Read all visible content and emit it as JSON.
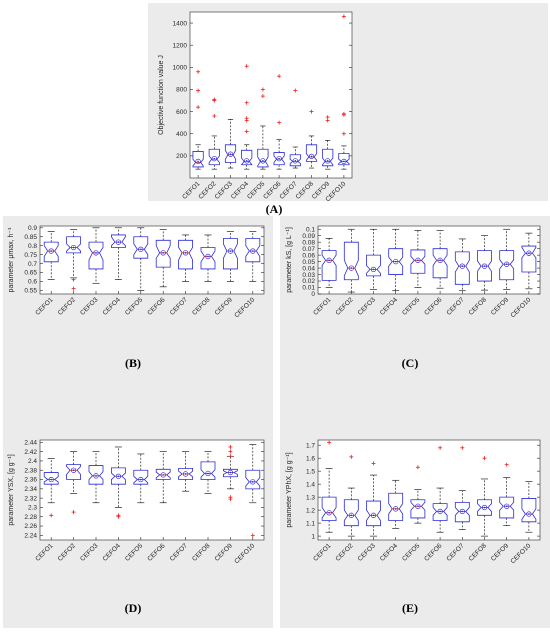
{
  "chart_data": [
    {
      "id": "A",
      "panel_label": "(A)",
      "type": "box",
      "ylabel": "Objective function value  J",
      "categories": [
        "CEFO1",
        "CEFO2",
        "CEFO3",
        "CEFO4",
        "CEFO5",
        "CEFO6",
        "CEFO7",
        "CEFO8",
        "CEFO9",
        "CEFO10"
      ],
      "ylim": [
        0,
        1500
      ],
      "yticks": [
        200,
        400,
        600,
        800,
        1000,
        1200,
        1400
      ],
      "boxes": [
        {
          "min": 80,
          "q1": 100,
          "med": 140,
          "q3": 240,
          "max": 300,
          "mean": 150,
          "notch": [
            110,
            170
          ],
          "outliers": [
            640,
            790,
            960
          ]
        },
        {
          "min": 80,
          "q1": 120,
          "med": 170,
          "q3": 260,
          "max": 380,
          "mean": 175,
          "notch": [
            140,
            200
          ],
          "outliers": [
            560,
            700,
            710
          ]
        },
        {
          "min": 90,
          "q1": 140,
          "med": 210,
          "q3": 300,
          "max": 530,
          "mean": 215,
          "notch": [
            170,
            250
          ],
          "outliers": []
        },
        {
          "min": 80,
          "q1": 120,
          "med": 150,
          "q3": 250,
          "max": 300,
          "mean": 155,
          "notch": [
            120,
            180
          ],
          "outliers": [
            420,
            520,
            540,
            680,
            1010
          ]
        },
        {
          "min": 80,
          "q1": 100,
          "med": 150,
          "q3": 260,
          "max": 470,
          "mean": 155,
          "notch": [
            110,
            190
          ],
          "outliers": [
            740,
            800
          ]
        },
        {
          "min": 80,
          "q1": 120,
          "med": 170,
          "q3": 230,
          "max": 350,
          "mean": 175,
          "notch": [
            140,
            200
          ],
          "outliers": [
            500,
            920
          ]
        },
        {
          "min": 90,
          "q1": 110,
          "med": 150,
          "q3": 210,
          "max": 280,
          "mean": 155,
          "notch": [
            130,
            170
          ],
          "outliers": [
            790
          ]
        },
        {
          "min": 90,
          "q1": 150,
          "med": 190,
          "q3": 300,
          "max": 380,
          "mean": 195,
          "notch": [
            160,
            220
          ],
          "outliers": [
            600
          ]
        },
        {
          "min": 80,
          "q1": 110,
          "med": 150,
          "q3": 260,
          "max": 340,
          "mean": 155,
          "notch": [
            120,
            180
          ],
          "outliers": [
            520,
            550
          ]
        },
        {
          "min": 80,
          "q1": 120,
          "med": 150,
          "q3": 220,
          "max": 290,
          "mean": 150,
          "notch": [
            130,
            170
          ],
          "outliers": [
            400,
            570,
            580,
            1460
          ]
        }
      ]
    },
    {
      "id": "B",
      "panel_label": "(B)",
      "type": "box",
      "ylabel": "parameter  μmax, h⁻¹",
      "categories": [
        "CEFO1",
        "CEFO2",
        "CEFO3",
        "CEFO4",
        "CEFO5",
        "CEFO6",
        "CEFO7",
        "CEFO8",
        "CEFO9",
        "CEFO10"
      ],
      "ylim": [
        0.53,
        0.91
      ],
      "yticks": [
        0.55,
        0.6,
        0.65,
        0.7,
        0.75,
        0.8,
        0.85,
        0.9
      ],
      "boxes": [
        {
          "min": 0.61,
          "q1": 0.71,
          "med": 0.77,
          "q3": 0.82,
          "max": 0.88,
          "mean": 0.77,
          "notch": [
            0.74,
            0.8
          ],
          "outliers": []
        },
        {
          "min": 0.62,
          "q1": 0.76,
          "med": 0.79,
          "q3": 0.85,
          "max": 0.89,
          "mean": 0.79,
          "notch": [
            0.77,
            0.81
          ],
          "outliers": [
            0.56,
            0.61
          ]
        },
        {
          "min": 0.59,
          "q1": 0.67,
          "med": 0.76,
          "q3": 0.82,
          "max": 0.9,
          "mean": 0.76,
          "notch": [
            0.72,
            0.79
          ],
          "outliers": []
        },
        {
          "min": 0.61,
          "q1": 0.79,
          "med": 0.82,
          "q3": 0.86,
          "max": 0.9,
          "mean": 0.82,
          "notch": [
            0.8,
            0.85
          ],
          "outliers": []
        },
        {
          "min": 0.55,
          "q1": 0.73,
          "med": 0.78,
          "q3": 0.85,
          "max": 0.9,
          "mean": 0.78,
          "notch": [
            0.75,
            0.81
          ],
          "outliers": []
        },
        {
          "min": 0.57,
          "q1": 0.68,
          "med": 0.76,
          "q3": 0.83,
          "max": 0.89,
          "mean": 0.76,
          "notch": [
            0.73,
            0.8
          ],
          "outliers": []
        },
        {
          "min": 0.6,
          "q1": 0.67,
          "med": 0.76,
          "q3": 0.83,
          "max": 0.86,
          "mean": 0.76,
          "notch": [
            0.72,
            0.79
          ],
          "outliers": []
        },
        {
          "min": 0.6,
          "q1": 0.67,
          "med": 0.74,
          "q3": 0.79,
          "max": 0.86,
          "mean": 0.74,
          "notch": [
            0.71,
            0.77
          ],
          "outliers": []
        },
        {
          "min": 0.6,
          "q1": 0.67,
          "med": 0.77,
          "q3": 0.84,
          "max": 0.88,
          "mean": 0.77,
          "notch": [
            0.73,
            0.81
          ],
          "outliers": []
        },
        {
          "min": 0.6,
          "q1": 0.71,
          "med": 0.77,
          "q3": 0.84,
          "max": 0.88,
          "mean": 0.77,
          "notch": [
            0.74,
            0.8
          ],
          "outliers": []
        }
      ]
    },
    {
      "id": "C",
      "panel_label": "(C)",
      "type": "box",
      "ylabel": "parameter  kS, [g L⁻¹]",
      "categories": [
        "CEFO1",
        "CEFO2",
        "CEFO3",
        "CEFO4",
        "CEFO5",
        "CEFO6",
        "CEFO7",
        "CEFO8",
        "CEFO9",
        "CEFO10"
      ],
      "ylim": [
        0,
        0.105
      ],
      "yticks": [
        0,
        0.01,
        0.02,
        0.03,
        0.04,
        0.05,
        0.06,
        0.07,
        0.08,
        0.09,
        0.1
      ],
      "boxes": [
        {
          "min": 0.01,
          "q1": 0.021,
          "med": 0.052,
          "q3": 0.067,
          "max": 0.086,
          "mean": 0.052,
          "notch": [
            0.044,
            0.06
          ],
          "outliers": []
        },
        {
          "min": 0.003,
          "q1": 0.022,
          "med": 0.04,
          "q3": 0.08,
          "max": 0.1,
          "mean": 0.04,
          "notch": [
            0.028,
            0.052
          ],
          "outliers": []
        },
        {
          "min": 0.007,
          "q1": 0.028,
          "med": 0.038,
          "q3": 0.06,
          "max": 0.1,
          "mean": 0.038,
          "notch": [
            0.032,
            0.044
          ],
          "outliers": []
        },
        {
          "min": 0.005,
          "q1": 0.03,
          "med": 0.05,
          "q3": 0.07,
          "max": 0.1,
          "mean": 0.05,
          "notch": [
            0.043,
            0.057
          ],
          "outliers": []
        },
        {
          "min": 0.01,
          "q1": 0.032,
          "med": 0.052,
          "q3": 0.068,
          "max": 0.098,
          "mean": 0.052,
          "notch": [
            0.046,
            0.058
          ],
          "outliers": []
        },
        {
          "min": 0.009,
          "q1": 0.025,
          "med": 0.052,
          "q3": 0.07,
          "max": 0.098,
          "mean": 0.052,
          "notch": [
            0.044,
            0.06
          ],
          "outliers": []
        },
        {
          "min": 0.005,
          "q1": 0.015,
          "med": 0.043,
          "q3": 0.065,
          "max": 0.085,
          "mean": 0.043,
          "notch": [
            0.034,
            0.052
          ],
          "outliers": []
        },
        {
          "min": 0.006,
          "q1": 0.02,
          "med": 0.043,
          "q3": 0.067,
          "max": 0.09,
          "mean": 0.043,
          "notch": [
            0.035,
            0.051
          ],
          "outliers": []
        },
        {
          "min": 0.007,
          "q1": 0.022,
          "med": 0.046,
          "q3": 0.067,
          "max": 0.1,
          "mean": 0.046,
          "notch": [
            0.039,
            0.053
          ],
          "outliers": []
        },
        {
          "min": 0.008,
          "q1": 0.034,
          "med": 0.063,
          "q3": 0.074,
          "max": 0.094,
          "mean": 0.063,
          "notch": [
            0.056,
            0.072
          ],
          "outliers": []
        }
      ]
    },
    {
      "id": "D",
      "panel_label": "(D)",
      "type": "box",
      "ylabel": "parameter  YSX, [g g⁻¹]",
      "categories": [
        "CEFO1",
        "CEFO2",
        "CEFO3",
        "CEFO4",
        "CEFO5",
        "CEFO6",
        "CEFO7",
        "CEFO8",
        "CEFO9",
        "CEFO10"
      ],
      "ylim": [
        2.23,
        2.445
      ],
      "yticks": [
        2.24,
        2.26,
        2.28,
        2.3,
        2.32,
        2.34,
        2.36,
        2.38,
        2.4,
        2.42,
        2.44
      ],
      "boxes": [
        {
          "min": 2.31,
          "q1": 2.35,
          "med": 2.36,
          "q3": 2.375,
          "max": 2.405,
          "mean": 2.36,
          "notch": [
            2.355,
            2.366
          ],
          "outliers": [
            2.283
          ]
        },
        {
          "min": 2.33,
          "q1": 2.36,
          "med": 2.38,
          "q3": 2.392,
          "max": 2.42,
          "mean": 2.38,
          "notch": [
            2.371,
            2.388
          ],
          "outliers": [
            2.29
          ]
        },
        {
          "min": 2.31,
          "q1": 2.35,
          "med": 2.368,
          "q3": 2.39,
          "max": 2.42,
          "mean": 2.368,
          "notch": [
            2.36,
            2.377
          ],
          "outliers": []
        },
        {
          "min": 2.3,
          "q1": 2.35,
          "med": 2.367,
          "q3": 2.385,
          "max": 2.43,
          "mean": 2.367,
          "notch": [
            2.36,
            2.374
          ],
          "outliers": [
            2.28,
            2.283
          ]
        },
        {
          "min": 2.31,
          "q1": 2.35,
          "med": 2.36,
          "q3": 2.38,
          "max": 2.415,
          "mean": 2.36,
          "notch": [
            2.353,
            2.367
          ],
          "outliers": []
        },
        {
          "min": 2.31,
          "q1": 2.36,
          "med": 2.37,
          "q3": 2.382,
          "max": 2.42,
          "mean": 2.37,
          "notch": [
            2.364,
            2.376
          ],
          "outliers": []
        },
        {
          "min": 2.335,
          "q1": 2.36,
          "med": 2.372,
          "q3": 2.384,
          "max": 2.42,
          "mean": 2.372,
          "notch": [
            2.366,
            2.378
          ],
          "outliers": []
        },
        {
          "min": 2.33,
          "q1": 2.36,
          "med": 2.373,
          "q3": 2.398,
          "max": 2.42,
          "mean": 2.373,
          "notch": [
            2.365,
            2.381
          ],
          "outliers": []
        },
        {
          "min": 2.34,
          "q1": 2.366,
          "med": 2.375,
          "q3": 2.382,
          "max": 2.41,
          "mean": 2.375,
          "notch": [
            2.371,
            2.379
          ],
          "outliers": [
            2.318,
            2.322,
            2.41,
            2.42,
            2.43
          ]
        },
        {
          "min": 2.31,
          "q1": 2.34,
          "med": 2.355,
          "q3": 2.38,
          "max": 2.435,
          "mean": 2.355,
          "notch": [
            2.346,
            2.364
          ],
          "outliers": [
            2.24
          ]
        }
      ]
    },
    {
      "id": "E",
      "panel_label": "(E)",
      "type": "box",
      "ylabel": "parameter  YPhX, [g g⁻¹]",
      "categories": [
        "CEFO1",
        "CEFO2",
        "CEFO3",
        "CEFO4",
        "CEFO5",
        "CEFO6",
        "CEFO7",
        "CEFO8",
        "CEFO9",
        "CEFO10"
      ],
      "ylim": [
        0.97,
        1.74
      ],
      "yticks": [
        1,
        1.1,
        1.2,
        1.3,
        1.4,
        1.5,
        1.6,
        1.7
      ],
      "boxes": [
        {
          "min": 1.03,
          "q1": 1.12,
          "med": 1.18,
          "q3": 1.3,
          "max": 1.52,
          "mean": 1.18,
          "notch": [
            1.14,
            1.22
          ],
          "outliers": [
            1.72
          ]
        },
        {
          "min": 1.0,
          "q1": 1.08,
          "med": 1.16,
          "q3": 1.28,
          "max": 1.37,
          "mean": 1.16,
          "notch": [
            1.12,
            1.2
          ],
          "outliers": [
            1.61
          ]
        },
        {
          "min": 1.0,
          "q1": 1.08,
          "med": 1.16,
          "q3": 1.27,
          "max": 1.47,
          "mean": 1.16,
          "notch": [
            1.12,
            1.2
          ],
          "outliers": [
            1.56
          ]
        },
        {
          "min": 1.06,
          "q1": 1.12,
          "med": 1.21,
          "q3": 1.33,
          "max": 1.43,
          "mean": 1.21,
          "notch": [
            1.17,
            1.25
          ],
          "outliers": []
        },
        {
          "min": 1.1,
          "q1": 1.14,
          "med": 1.23,
          "q3": 1.28,
          "max": 1.36,
          "mean": 1.23,
          "notch": [
            1.2,
            1.26
          ],
          "outliers": [
            1.53
          ]
        },
        {
          "min": 1.03,
          "q1": 1.12,
          "med": 1.19,
          "q3": 1.25,
          "max": 1.37,
          "mean": 1.19,
          "notch": [
            1.16,
            1.22
          ],
          "outliers": [
            1.68
          ]
        },
        {
          "min": 1.05,
          "q1": 1.11,
          "med": 1.19,
          "q3": 1.26,
          "max": 1.35,
          "mean": 1.19,
          "notch": [
            1.16,
            1.22
          ],
          "outliers": [
            1.68
          ]
        },
        {
          "min": 1.0,
          "q1": 1.16,
          "med": 1.22,
          "q3": 1.28,
          "max": 1.44,
          "mean": 1.22,
          "notch": [
            1.19,
            1.25
          ],
          "outliers": [
            1.6
          ]
        },
        {
          "min": 1.08,
          "q1": 1.14,
          "med": 1.23,
          "q3": 1.3,
          "max": 1.45,
          "mean": 1.23,
          "notch": [
            1.2,
            1.26
          ],
          "outliers": [
            1.55
          ]
        },
        {
          "min": 1.03,
          "q1": 1.11,
          "med": 1.17,
          "q3": 1.29,
          "max": 1.42,
          "mean": 1.17,
          "notch": [
            1.13,
            1.21
          ],
          "outliers": []
        }
      ]
    }
  ]
}
